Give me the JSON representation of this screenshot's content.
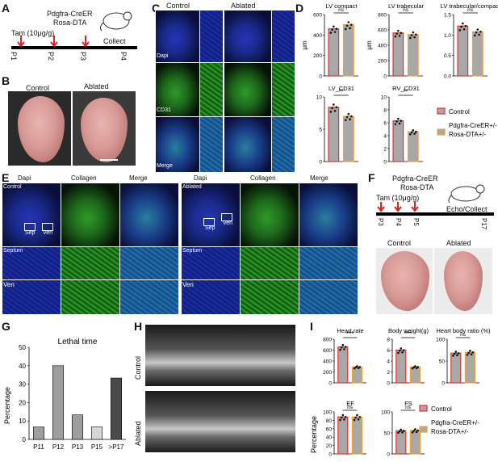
{
  "panels": {
    "A": "A",
    "B": "B",
    "C": "C",
    "D": "D",
    "E": "E",
    "F": "F",
    "G": "G",
    "H": "H",
    "I": "I"
  },
  "panelA": {
    "line1": "Pdgfra-CreER",
    "line2": "Rosa-DTA",
    "tam": "Tam (10μg/g)",
    "collect": "Collect",
    "days": [
      "P1",
      "P2",
      "P3",
      "P4"
    ]
  },
  "panelB": {
    "control": "Control",
    "ablated": "Ablated"
  },
  "panelC": {
    "control": "Control",
    "ablated": "Ablated",
    "rows": [
      "Dapi",
      "CD31",
      "Merge"
    ]
  },
  "panelD": {
    "legend": {
      "control": "Control",
      "ablated_line1": "Pdgfra-CreER+/-",
      "ablated_line2": "Rosa-DTA+/-"
    },
    "colors": {
      "control": "#e3342f",
      "ablated": "#f0a030",
      "bar": "#a8a8a8"
    },
    "charts": [
      {
        "title": "LV compact",
        "ylabel": "μm",
        "ylim": [
          0,
          600
        ],
        "ticks": [
          "0",
          "200",
          "400",
          "600"
        ],
        "values": [
          460,
          500
        ],
        "sig": "ns"
      },
      {
        "title": "LV trabecular",
        "ylabel": "μm",
        "ylim": [
          0,
          800
        ],
        "ticks": [
          "0",
          "200",
          "400",
          "600",
          "800"
        ],
        "values": [
          560,
          540
        ],
        "sig": "ns"
      },
      {
        "title": "LV trabecular/compact",
        "ylabel": "",
        "ylim": [
          0,
          1.5
        ],
        "ticks": [
          "0.0",
          "0.5",
          "1.0",
          "1.5"
        ],
        "values": [
          1.22,
          1.08
        ],
        "sig": "ns"
      },
      {
        "title": "LV_CD31",
        "ylabel": "",
        "ylim": [
          0,
          10
        ],
        "ticks": [
          "0",
          "5",
          "10"
        ],
        "values": [
          8.4,
          7.0
        ],
        "sig": "**"
      },
      {
        "title": "RV_CD31",
        "ylabel": "",
        "ylim": [
          0,
          10
        ],
        "ticks": [
          "0",
          "2",
          "4",
          "6",
          "8",
          "10"
        ],
        "values": [
          6.3,
          4.6
        ],
        "sig": "**"
      }
    ]
  },
  "panelE": {
    "dapi": "Dapi",
    "collagen": "Collagen",
    "merge": "Merge",
    "control": "Control",
    "ablated": "Ablated",
    "septum": "Septum",
    "ven": "Ven",
    "sep": "Sep"
  },
  "panelF": {
    "line1": "Pdgfra-CreER",
    "line2": "Rosa-DTA",
    "tam": "Tam (10μg/g)",
    "collect": "Echo/Collect",
    "days": [
      "P3",
      "P4",
      "P5",
      "P17"
    ],
    "control": "Control",
    "ablated": "Ablated"
  },
  "panelG": {
    "title": "Lethal time",
    "ylabel": "Percentage"
  },
  "panelH": {
    "control": "Control",
    "ablated": "Ablated"
  },
  "panelI": {
    "ylabel": "Percentage",
    "legend": {
      "control": "Control",
      "ablated_line1": "Pdgfra-CreER+/-",
      "ablated_line2": "Rosa-DTA+/-"
    },
    "charts": [
      {
        "title": "Heart rate",
        "ylim": [
          0,
          800
        ],
        "ticks": [
          "0",
          "200",
          "400",
          "600",
          "800"
        ],
        "values": [
          660,
          290
        ],
        "sig": "***"
      },
      {
        "title": "Body weight(g)",
        "ylim": [
          0,
          8
        ],
        "ticks": [
          "0",
          "2",
          "4",
          "6",
          "8"
        ],
        "values": [
          6.0,
          2.9
        ],
        "sig": "***"
      },
      {
        "title": "Heart body ratio (%)",
        "ylim": [
          0,
          100
        ],
        "ticks": [
          "0",
          "50",
          "100"
        ],
        "values": [
          68,
          70
        ],
        "sig": "ns"
      },
      {
        "title": "EF",
        "ylim": [
          0,
          100
        ],
        "ticks": [
          "0",
          "20",
          "40",
          "60",
          "80",
          "100"
        ],
        "values": [
          88,
          88
        ],
        "sig": "ns"
      },
      {
        "title": "FS",
        "ylim": [
          0,
          100
        ],
        "ticks": [
          "0",
          "50",
          "100"
        ],
        "values": [
          55,
          56
        ],
        "sig": "ns"
      }
    ]
  },
  "chart_data": [
    {
      "type": "bar",
      "categories": [
        "P11",
        "P12",
        "P13",
        "P15",
        ">P17"
      ],
      "values": [
        6.7,
        40,
        13.3,
        6.7,
        33.3
      ],
      "title": "Lethal time",
      "xlabel": "",
      "ylabel": "Percentage",
      "ylim": [
        0,
        50
      ],
      "ticks": [
        "0",
        "10",
        "20",
        "30",
        "40",
        "50"
      ]
    }
  ]
}
